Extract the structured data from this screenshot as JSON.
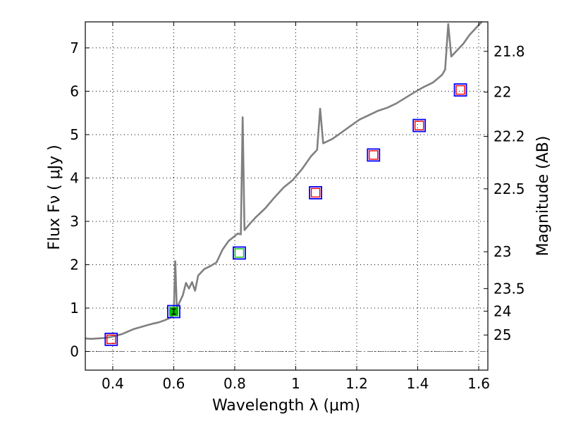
{
  "chart_data": {
    "type": "line",
    "xlabel": "Wavelength  λ (μm)",
    "ylabel": "Flux  Fν  ( μJy )",
    "right_ylabel": "Magnitude (AB)",
    "xlim": [
      0.31,
      1.63
    ],
    "ylim": [
      -0.43,
      7.6
    ],
    "x_ticks": [
      0.4,
      0.6,
      0.8,
      1.0,
      1.2,
      1.4,
      1.6
    ],
    "x_tick_labels": [
      "0.4",
      "0.6",
      "0.8",
      "1",
      "1.2",
      "1.4",
      "1.6"
    ],
    "y_ticks": [
      0,
      1,
      2,
      3,
      4,
      5,
      6,
      7
    ],
    "y_tick_labels": [
      "0",
      "1",
      "2",
      "3",
      "4",
      "5",
      "6",
      "7"
    ],
    "right_ticks": [
      {
        "label": "21.8",
        "flux": 6.92
      },
      {
        "label": "22",
        "flux": 5.98
      },
      {
        "label": "22.2",
        "flux": 4.96
      },
      {
        "label": "22.5",
        "flux": 3.75
      },
      {
        "label": "23",
        "flux": 2.3
      },
      {
        "label": "23.5",
        "flux": 1.45
      },
      {
        "label": "24",
        "flux": 0.93
      },
      {
        "label": "25",
        "flux": 0.38
      }
    ],
    "grid": true,
    "colors": {
      "spectrum": "#808080",
      "box_outer": "#0000ff",
      "box_inner_default": "#ff0000",
      "box_inner_z": "#00cc00",
      "filled_point": "#00bb00",
      "dashed_line": "#777777"
    },
    "series": [
      {
        "kind": "spectrum",
        "points": [
          [
            0.31,
            0.3
          ],
          [
            0.33,
            0.29
          ],
          [
            0.35,
            0.3
          ],
          [
            0.37,
            0.31
          ],
          [
            0.39,
            0.33
          ],
          [
            0.41,
            0.36
          ],
          [
            0.43,
            0.4
          ],
          [
            0.45,
            0.46
          ],
          [
            0.47,
            0.52
          ],
          [
            0.49,
            0.56
          ],
          [
            0.51,
            0.6
          ],
          [
            0.53,
            0.64
          ],
          [
            0.55,
            0.67
          ],
          [
            0.57,
            0.72
          ],
          [
            0.59,
            0.78
          ],
          [
            0.6,
            0.85
          ],
          [
            0.605,
            2.08
          ],
          [
            0.61,
            1.0
          ],
          [
            0.62,
            1.15
          ],
          [
            0.63,
            1.3
          ],
          [
            0.64,
            1.58
          ],
          [
            0.65,
            1.45
          ],
          [
            0.66,
            1.6
          ],
          [
            0.67,
            1.4
          ],
          [
            0.68,
            1.75
          ],
          [
            0.7,
            1.9
          ],
          [
            0.72,
            1.97
          ],
          [
            0.74,
            2.05
          ],
          [
            0.76,
            2.35
          ],
          [
            0.78,
            2.55
          ],
          [
            0.8,
            2.66
          ],
          [
            0.81,
            2.72
          ],
          [
            0.82,
            2.7
          ],
          [
            0.826,
            5.4
          ],
          [
            0.832,
            2.8
          ],
          [
            0.85,
            2.95
          ],
          [
            0.87,
            3.1
          ],
          [
            0.9,
            3.3
          ],
          [
            0.93,
            3.55
          ],
          [
            0.96,
            3.78
          ],
          [
            0.99,
            3.95
          ],
          [
            1.02,
            4.2
          ],
          [
            1.05,
            4.5
          ],
          [
            1.07,
            4.65
          ],
          [
            1.08,
            5.6
          ],
          [
            1.09,
            4.8
          ],
          [
            1.12,
            4.9
          ],
          [
            1.15,
            5.05
          ],
          [
            1.18,
            5.2
          ],
          [
            1.21,
            5.35
          ],
          [
            1.24,
            5.45
          ],
          [
            1.27,
            5.55
          ],
          [
            1.3,
            5.62
          ],
          [
            1.33,
            5.72
          ],
          [
            1.36,
            5.85
          ],
          [
            1.39,
            5.98
          ],
          [
            1.42,
            6.1
          ],
          [
            1.45,
            6.2
          ],
          [
            1.48,
            6.38
          ],
          [
            1.49,
            6.5
          ],
          [
            1.5,
            7.55
          ],
          [
            1.51,
            6.8
          ],
          [
            1.53,
            6.95
          ],
          [
            1.55,
            7.1
          ],
          [
            1.57,
            7.3
          ],
          [
            1.59,
            7.45
          ],
          [
            1.61,
            7.6
          ]
        ]
      },
      {
        "kind": "photometry",
        "points": [
          {
            "x": 0.395,
            "y": 0.28,
            "inner": "box_inner_default"
          },
          {
            "x": 0.6,
            "y": 0.92,
            "inner": "filled",
            "err": 0.06
          },
          {
            "x": 0.815,
            "y": 2.27,
            "inner": "box_inner_z"
          },
          {
            "x": 1.065,
            "y": 3.66,
            "inner": "box_inner_default"
          },
          {
            "x": 1.255,
            "y": 4.53,
            "inner": "box_inner_default"
          },
          {
            "x": 1.405,
            "y": 5.21,
            "inner": "box_inner_default"
          },
          {
            "x": 1.54,
            "y": 6.03,
            "inner": "box_inner_default"
          }
        ]
      }
    ],
    "zero_line": {
      "y": 0.0,
      "style": "dash-dot"
    }
  }
}
